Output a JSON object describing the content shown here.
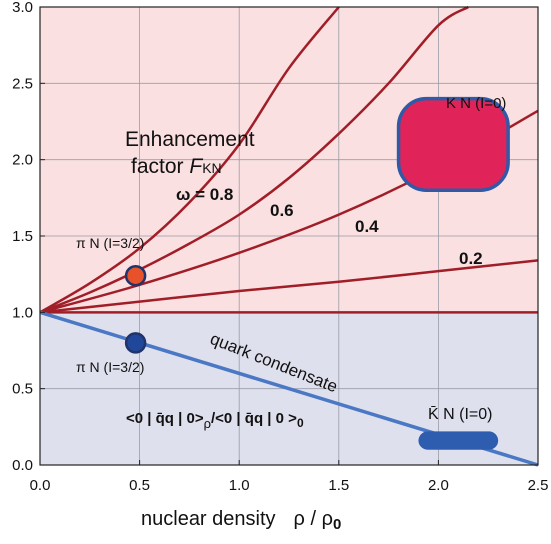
{
  "chart_data": {
    "type": "line",
    "title": "",
    "xlabel": "nuclear density",
    "xlabel_formula": {
      "rho": "ρ",
      "slash": " / ",
      "rho0": "ρ",
      "sub": "0"
    },
    "ylabel": "",
    "xlim": [
      0.0,
      2.5
    ],
    "ylim": [
      0.0,
      3.0
    ],
    "xticks": [
      "0.0",
      "0.5",
      "1.0",
      "1.5",
      "2.0",
      "2.5"
    ],
    "yticks": [
      "0.0",
      "0.5",
      "1.0",
      "1.5",
      "2.0",
      "2.5",
      "3.0"
    ],
    "grid": true,
    "regions": [
      {
        "name": "enhancement",
        "y_range": [
          1.0,
          3.0
        ],
        "color": "#fbe0e1"
      },
      {
        "name": "suppression",
        "y_range": [
          0.0,
          1.0
        ],
        "color": "#dfe0ee"
      }
    ],
    "series": [
      {
        "label": "ω = 0.8",
        "omega": 0.8,
        "color": "#a01e28",
        "x": [
          0,
          0.25,
          0.5,
          0.75,
          1.0,
          1.25,
          1.5
        ],
        "y": [
          1.0,
          1.19,
          1.42,
          1.72,
          2.1,
          2.6,
          3.0
        ]
      },
      {
        "label": "0.6",
        "omega": 0.6,
        "color": "#a01e28",
        "x": [
          0,
          0.25,
          0.5,
          0.75,
          1.0,
          1.25,
          1.5,
          1.75,
          2.0,
          2.15
        ],
        "y": [
          1.0,
          1.13,
          1.28,
          1.45,
          1.64,
          1.88,
          2.17,
          2.5,
          2.88,
          3.0
        ]
      },
      {
        "label": "0.4",
        "omega": 0.4,
        "color": "#a01e28",
        "x": [
          0,
          0.5,
          1.0,
          1.5,
          2.0,
          2.5
        ],
        "y": [
          1.0,
          1.18,
          1.39,
          1.64,
          1.95,
          2.32
        ]
      },
      {
        "label": "0.2",
        "omega": 0.2,
        "color": "#a01e28",
        "x": [
          0,
          0.5,
          1.0,
          1.5,
          2.0,
          2.5
        ],
        "y": [
          1.0,
          1.07,
          1.14,
          1.2,
          1.27,
          1.34
        ]
      },
      {
        "label": "",
        "name": "baseline",
        "color": "#a01e28",
        "x": [
          0,
          2.5
        ],
        "y": [
          1.0,
          1.0
        ]
      },
      {
        "label": "quark condensate",
        "color": "#4a78c4",
        "x": [
          0,
          2.5
        ],
        "y": [
          1.0,
          0.0
        ]
      }
    ],
    "points": [
      {
        "label": "π N (I=3/2)",
        "x": 0.48,
        "y": 1.24,
        "color": "#e8522a"
      },
      {
        "label": "π N (I=3/2)",
        "x": 0.48,
        "y": 0.8,
        "color": "#21479a"
      }
    ],
    "boxes": [
      {
        "label": "K N (I=0)",
        "x": [
          1.8,
          2.35
        ],
        "y": [
          1.8,
          2.4
        ],
        "color": "#e0245a",
        "edge": "#2e5aa8"
      },
      {
        "label": "K̄ N (I=0)",
        "x": [
          1.9,
          2.3
        ],
        "y": [
          0.1,
          0.22
        ],
        "color": "#2e5db0"
      }
    ],
    "annotations": {
      "enhancement_line1": "Enhancement",
      "enhancement_line2_prefix": "factor ",
      "enhancement_F": "F",
      "enhancement_sub": "KN",
      "ratio_left": "<0 | q̄q | 0>",
      "ratio_sub": "ρ",
      "ratio_mid": "/<0 | q̄q | 0 >",
      "ratio_sub2": "0"
    }
  }
}
